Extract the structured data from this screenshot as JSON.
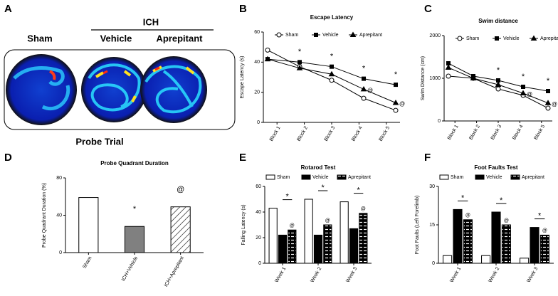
{
  "panel_a": {
    "panel_label": "A",
    "group_label": "ICH",
    "conditions": [
      "Sham",
      "Vehicle",
      "Aprepitant"
    ],
    "caption": "Probe Trial"
  },
  "chart_data": [
    {
      "type": "line",
      "panel_label": "B",
      "title": "Escape Latency",
      "y_label": "Escape Latency (s)",
      "categories": [
        "Block 1",
        "Block 2",
        "Block 3",
        "Block 4",
        "Block 5"
      ],
      "series": [
        {
          "name": "Sham",
          "color": "#000000",
          "marker": "circle",
          "values": [
            48,
            37,
            28,
            16,
            8
          ]
        },
        {
          "name": "Vehicle",
          "color": "#000000",
          "marker": "square",
          "values": [
            42,
            40,
            37,
            29,
            25
          ]
        },
        {
          "name": "Aprepitant",
          "color": "#000000",
          "marker": "triangle",
          "values": [
            42,
            36,
            32,
            22,
            13
          ]
        }
      ],
      "ylim": [
        0,
        60
      ],
      "yticks": [
        0,
        20,
        40,
        60
      ],
      "annotations": [
        {
          "text": "*",
          "x": "Block 2"
        },
        {
          "text": "*",
          "x": "Block 3"
        },
        {
          "text": "*",
          "x": "Block 4"
        },
        {
          "text": "*",
          "x": "Block 5"
        },
        {
          "text": "@",
          "x": "Block 4",
          "series": "Aprepitant"
        },
        {
          "text": "@",
          "x": "Block 5",
          "series": "Aprepitant"
        }
      ]
    },
    {
      "type": "line",
      "panel_label": "C",
      "title": "Swim distance",
      "y_label": "Swim Distance (cm)",
      "categories": [
        "Block 1",
        "Block 2",
        "Block 3",
        "Block 4",
        "Block 5"
      ],
      "series": [
        {
          "name": "Sham",
          "color": "#000000",
          "marker": "circle",
          "values": [
            1050,
            1000,
            750,
            600,
            300
          ]
        },
        {
          "name": "Vehicle",
          "color": "#000000",
          "marker": "square",
          "values": [
            1350,
            1050,
            950,
            800,
            700
          ]
        },
        {
          "name": "Aprepitant",
          "color": "#000000",
          "marker": "triangle",
          "values": [
            1250,
            1000,
            850,
            650,
            420
          ]
        }
      ],
      "ylim": [
        0,
        2000
      ],
      "yticks": [
        0,
        1000,
        2000
      ],
      "annotations": [
        {
          "text": "*",
          "x": "Block 3"
        },
        {
          "text": "*",
          "x": "Block 4"
        },
        {
          "text": "*",
          "x": "Block 5"
        },
        {
          "text": "@",
          "x": "Block 4",
          "series": "Aprepitant"
        },
        {
          "text": "@",
          "x": "Block 5",
          "series": "Aprepitant"
        }
      ]
    },
    {
      "type": "bar",
      "panel_label": "D",
      "title": "Probe Quadrant Duration",
      "y_label": "Probe Quadrant Duration (%)",
      "categories": [
        "Sham",
        "ICH+Vehicle",
        "ICH+Aprepitant"
      ],
      "values": [
        59,
        28,
        49
      ],
      "colors": [
        "#ffffff",
        "#808080",
        "#ffffff"
      ],
      "hatched": [
        false,
        false,
        true
      ],
      "ylim": [
        0,
        80
      ],
      "yticks": [
        0,
        40,
        80
      ],
      "annotations": [
        {
          "text": "*",
          "x": "ICH+Vehicle"
        },
        {
          "text": "@",
          "x": "ICH+Aprepitant"
        }
      ]
    },
    {
      "type": "grouped_bar",
      "panel_label": "E",
      "title": "Rotarod Test",
      "y_label": "Falling Latency (s)",
      "categories": [
        "Week 1",
        "Week 2",
        "Week 3"
      ],
      "series": [
        {
          "name": "Sham",
          "color": "#ffffff",
          "hatched": false,
          "values": [
            43,
            50,
            48
          ]
        },
        {
          "name": "Vehicle",
          "color": "#000000",
          "hatched": false,
          "values": [
            22,
            22,
            27
          ]
        },
        {
          "name": "Aprepitant",
          "color": "#000000",
          "hatched": true,
          "values": [
            26,
            30,
            39
          ]
        }
      ],
      "ylim": [
        0,
        60
      ],
      "yticks": [
        0,
        20,
        40,
        60
      ],
      "annotations": [
        {
          "text": "*",
          "x": "Week 1",
          "bracket": true
        },
        {
          "text": "*",
          "x": "Week 2",
          "bracket": true
        },
        {
          "text": "*",
          "x": "Week 3",
          "bracket": true
        },
        {
          "text": "@",
          "x": "Week 1",
          "series": "Aprepitant"
        },
        {
          "text": "@",
          "x": "Week 2",
          "series": "Aprepitant"
        },
        {
          "text": "@",
          "x": "Week 3",
          "series": "Aprepitant"
        }
      ]
    },
    {
      "type": "grouped_bar",
      "panel_label": "F",
      "title": "Foot Faults Test",
      "y_label": "Foot Faults (Left Forelimb)",
      "categories": [
        "Week 1",
        "Week 2",
        "Week 3"
      ],
      "series": [
        {
          "name": "Sham",
          "color": "#ffffff",
          "hatched": false,
          "values": [
            3,
            3,
            2
          ]
        },
        {
          "name": "Vehicle",
          "color": "#000000",
          "hatched": false,
          "values": [
            21,
            20,
            14
          ]
        },
        {
          "name": "Aprepitant",
          "color": "#000000",
          "hatched": true,
          "values": [
            17,
            15,
            11
          ]
        }
      ],
      "ylim": [
        0,
        30
      ],
      "yticks": [
        0,
        15,
        30
      ],
      "annotations": [
        {
          "text": "*",
          "x": "Week 1",
          "bracket": true
        },
        {
          "text": "*",
          "x": "Week 2",
          "bracket": true
        },
        {
          "text": "*",
          "x": "Week 3",
          "bracket": true
        },
        {
          "text": "@",
          "x": "Week 1",
          "series": "Aprepitant"
        },
        {
          "text": "@",
          "x": "Week 2",
          "series": "Aprepitant"
        },
        {
          "text": "@",
          "x": "Week 3",
          "series": "Aprepitant"
        }
      ]
    }
  ]
}
